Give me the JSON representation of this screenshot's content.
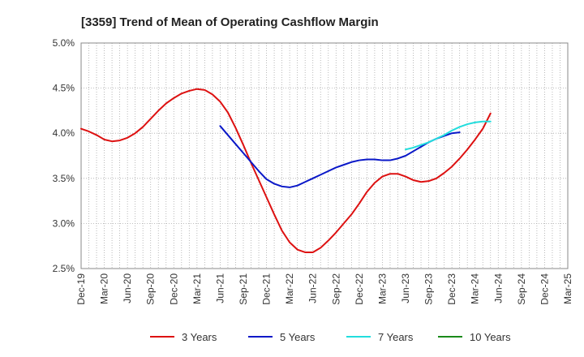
{
  "chart_data": {
    "type": "line",
    "title": "[3359]  Trend of Mean of Operating Cashflow Margin",
    "xlabel": "",
    "ylabel": "",
    "ylim": [
      2.5,
      5.0
    ],
    "y_ticks": [
      "2.5%",
      "3.0%",
      "3.5%",
      "4.0%",
      "4.5%",
      "5.0%"
    ],
    "y_tick_values": [
      2.5,
      3.0,
      3.5,
      4.0,
      4.5,
      5.0
    ],
    "x_ticks": [
      "Dec-19",
      "Mar-20",
      "Jun-20",
      "Sep-20",
      "Dec-20",
      "Mar-21",
      "Jun-21",
      "Sep-21",
      "Dec-21",
      "Mar-22",
      "Jun-22",
      "Sep-22",
      "Dec-22",
      "Mar-23",
      "Jun-23",
      "Sep-23",
      "Dec-23",
      "Mar-24",
      "Jun-24",
      "Sep-24",
      "Dec-24",
      "Mar-25"
    ],
    "x_tick_index": [
      0,
      3,
      6,
      9,
      12,
      15,
      18,
      21,
      24,
      27,
      30,
      33,
      36,
      39,
      42,
      45,
      48,
      51,
      54,
      57,
      60,
      63
    ],
    "x_months_total": 63,
    "grid": true,
    "legend_position": "bottom",
    "series": [
      {
        "name": "3 Years",
        "color": "#dd1111",
        "start_index": 0,
        "values": [
          4.05,
          4.02,
          3.98,
          3.93,
          3.91,
          3.92,
          3.95,
          4.0,
          4.07,
          4.16,
          4.25,
          4.33,
          4.39,
          4.44,
          4.47,
          4.49,
          4.48,
          4.43,
          4.35,
          4.23,
          4.06,
          3.87,
          3.67,
          3.48,
          3.29,
          3.1,
          2.92,
          2.79,
          2.71,
          2.68,
          2.68,
          2.73,
          2.81,
          2.9,
          3.0,
          3.1,
          3.22,
          3.35,
          3.45,
          3.52,
          3.55,
          3.55,
          3.52,
          3.48,
          3.46,
          3.47,
          3.5,
          3.56,
          3.63,
          3.72,
          3.82,
          3.93,
          4.05,
          4.22
        ]
      },
      {
        "name": "5 Years",
        "color": "#0a18c8",
        "start_index": 18,
        "values": [
          4.08,
          3.98,
          3.88,
          3.78,
          3.68,
          3.58,
          3.49,
          3.44,
          3.41,
          3.4,
          3.42,
          3.46,
          3.5,
          3.54,
          3.58,
          3.62,
          3.65,
          3.68,
          3.7,
          3.71,
          3.71,
          3.7,
          3.7,
          3.72,
          3.75,
          3.8,
          3.85,
          3.9,
          3.94,
          3.97,
          4.0,
          4.01
        ]
      },
      {
        "name": "7 Years",
        "color": "#22dddd",
        "start_index": 42,
        "values": [
          3.82,
          3.84,
          3.87,
          3.9,
          3.94,
          3.98,
          4.03,
          4.07,
          4.1,
          4.12,
          4.13,
          4.13
        ]
      },
      {
        "name": "10 Years",
        "color": "#1a8a1a",
        "start_index": 0,
        "values": []
      }
    ]
  }
}
